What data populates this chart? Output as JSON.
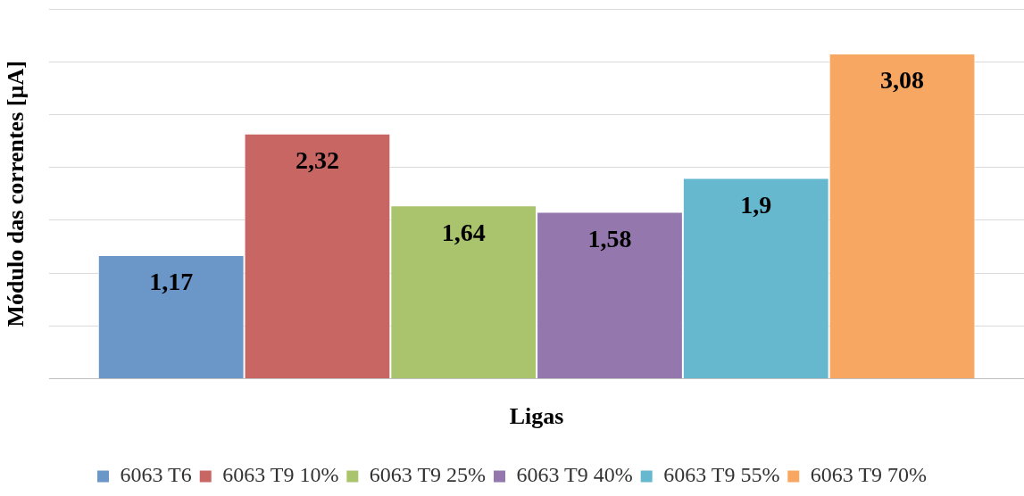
{
  "chart_data": {
    "type": "bar",
    "xlabel": "Ligas",
    "ylabel": "Módulo das correntes [µA]",
    "categories": [
      null
    ],
    "series": [
      {
        "name": "6063 T6",
        "color": "#6a96c8",
        "values": [
          1.17
        ],
        "value_labels": [
          "1,17"
        ]
      },
      {
        "name": "6063 T9 10%",
        "color": "#c86664",
        "values": [
          2.32
        ],
        "value_labels": [
          "2,32"
        ]
      },
      {
        "name": "6063 T9 25%",
        "color": "#a9c46c",
        "values": [
          1.64
        ],
        "value_labels": [
          "1,64"
        ]
      },
      {
        "name": "6063 T9 40%",
        "color": "#9478ad",
        "values": [
          1.58
        ],
        "value_labels": [
          "1,58"
        ]
      },
      {
        "name": "6063 T9 55%",
        "color": "#65b8cd",
        "values": [
          1.9
        ],
        "value_labels": [
          "1,9"
        ]
      },
      {
        "name": "6063 T9 70%",
        "color": "#f8a762",
        "values": [
          3.08
        ],
        "value_labels": [
          "3,08"
        ]
      }
    ],
    "ylim": [
      0,
      3.5
    ],
    "yticks": [
      {
        "value": 0,
        "label": null
      },
      {
        "value": 0.5,
        "label": null
      },
      {
        "value": 1,
        "label": null
      },
      {
        "value": 1.5,
        "label": null
      },
      {
        "value": 2,
        "label": null
      },
      {
        "value": 2.5,
        "label": null
      },
      {
        "value": 3,
        "label": null
      },
      {
        "value": 3.5,
        "label": null
      }
    ],
    "grid": "y",
    "legend": "bottom"
  }
}
